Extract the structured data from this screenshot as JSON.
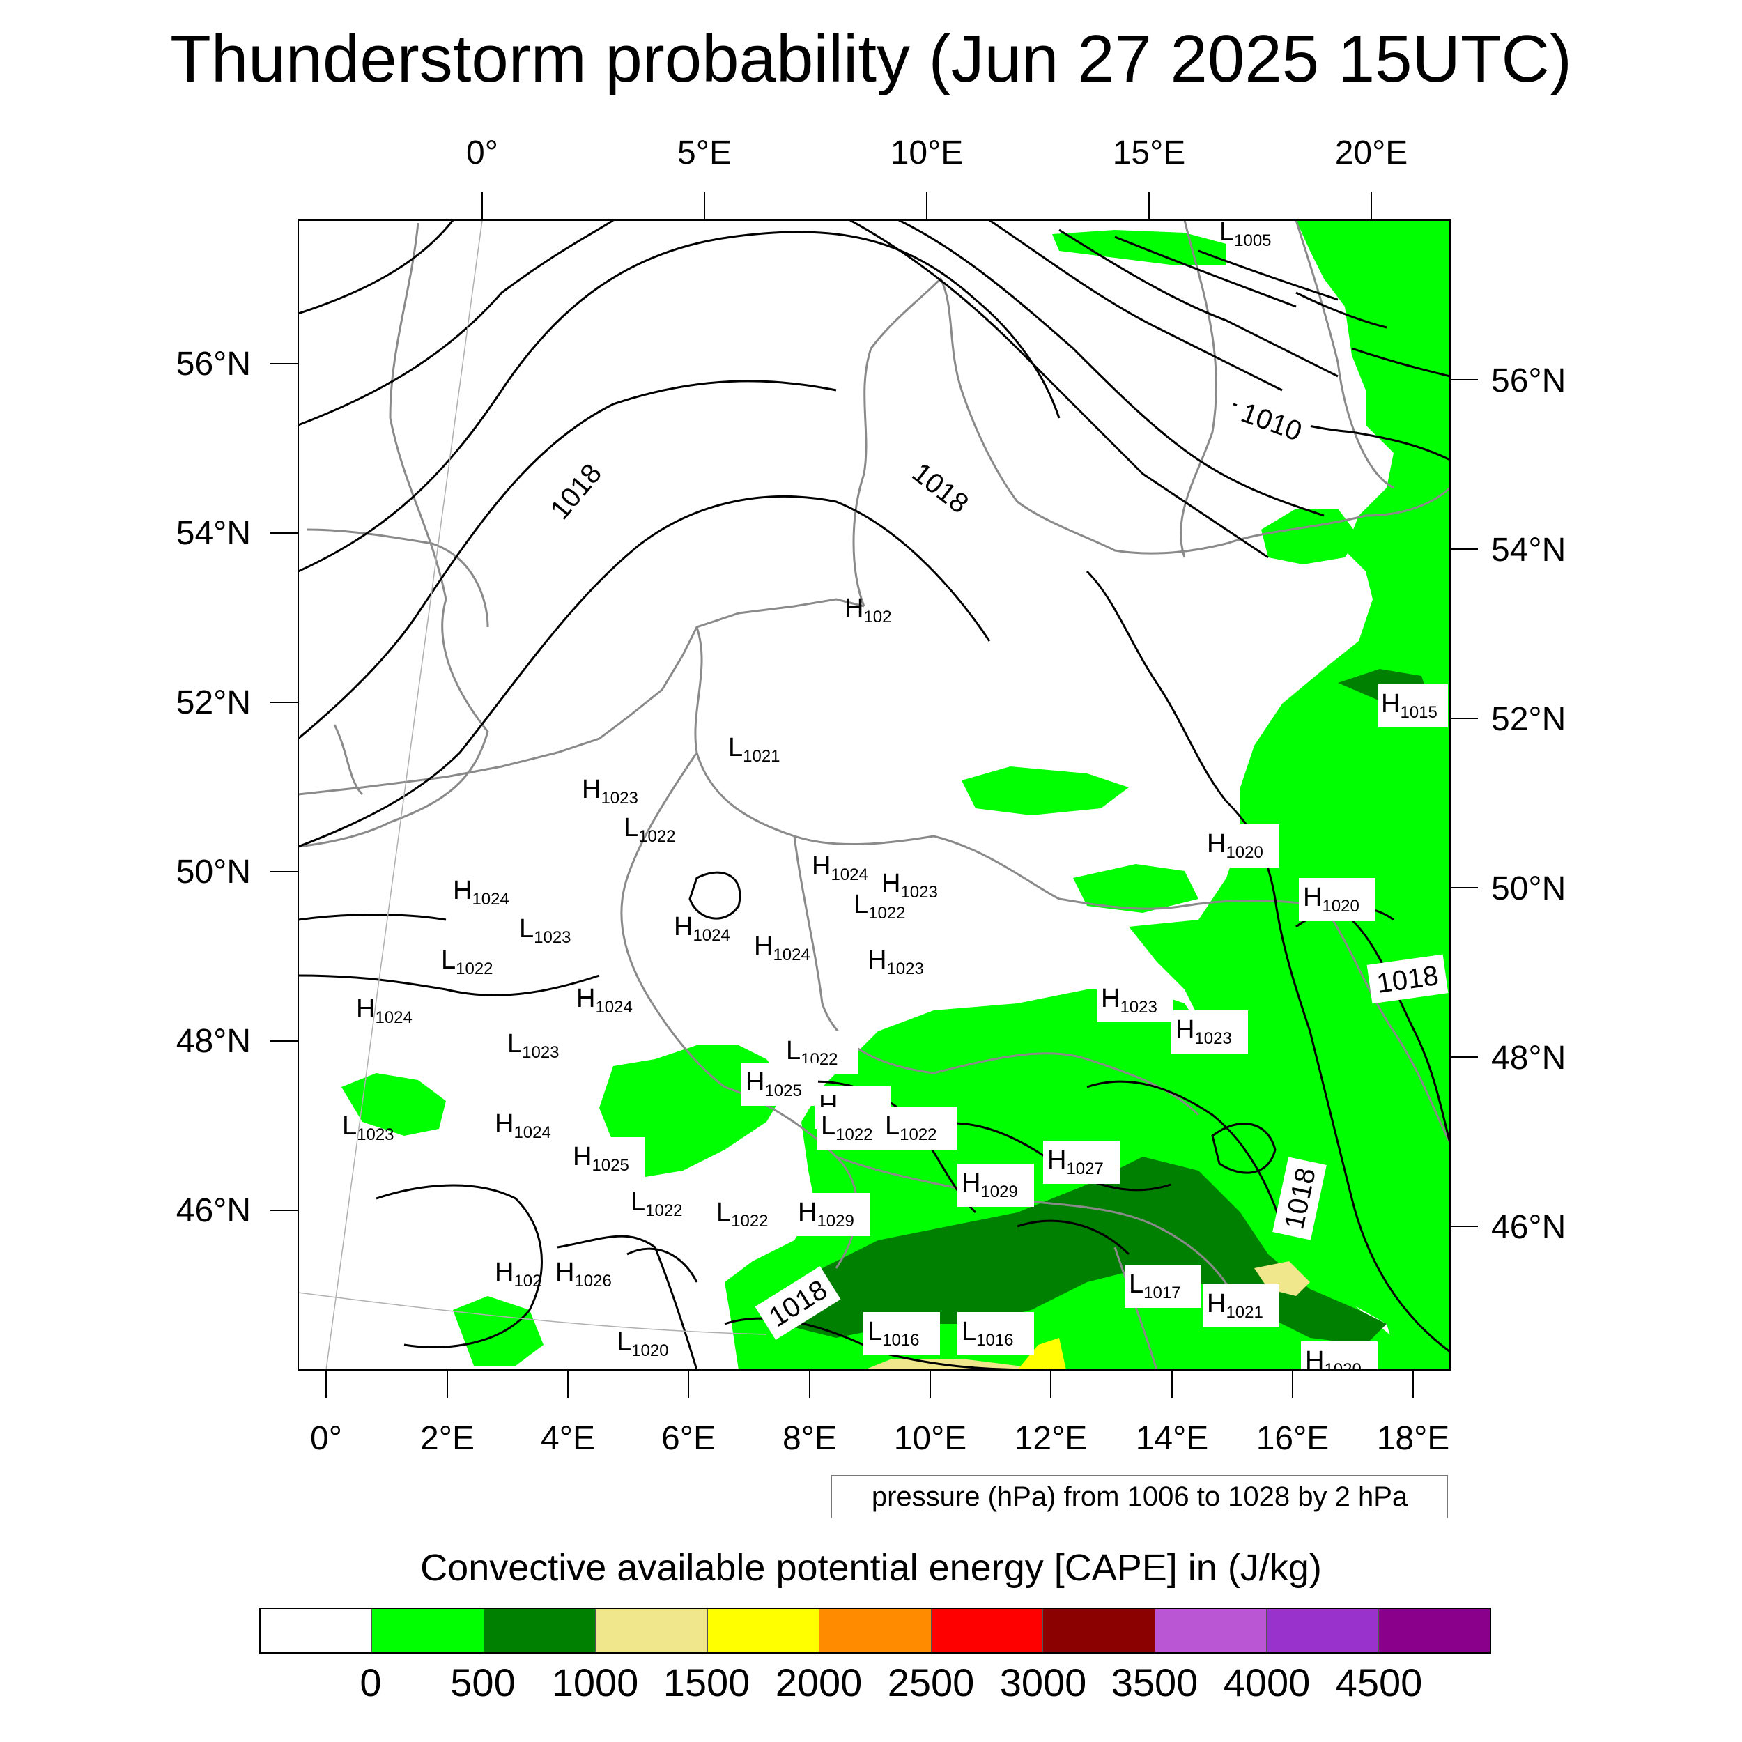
{
  "title": "Thunderstorm probability (Jun 27 2025 15UTC)",
  "map": {
    "top_lon_labels": [
      "0°",
      "5°E",
      "10°E",
      "15°E",
      "20°E"
    ],
    "bottom_lon_labels": [
      "0°",
      "2°E",
      "4°E",
      "6°E",
      "8°E",
      "10°E",
      "12°E",
      "14°E",
      "16°E",
      "18°E"
    ],
    "left_lat_labels": [
      "56°N",
      "54°N",
      "52°N",
      "50°N",
      "48°N",
      "46°N"
    ],
    "right_lat_labels": [
      "56°N",
      "54°N",
      "52°N",
      "50°N",
      "48°N",
      "46°N"
    ],
    "isobar_labels": [
      "1018",
      "1010",
      "1018",
      "1018",
      "1018",
      "1018"
    ],
    "pressure_centers": [
      {
        "type": "L",
        "value": "1005"
      },
      {
        "type": "H",
        "value": "102"
      },
      {
        "type": "H",
        "value": "1015"
      },
      {
        "type": "L",
        "value": "1021"
      },
      {
        "type": "H",
        "value": "1023"
      },
      {
        "type": "L",
        "value": "1022"
      },
      {
        "type": "H",
        "value": "1024"
      },
      {
        "type": "H",
        "value": "1023"
      },
      {
        "type": "L",
        "value": "1022"
      },
      {
        "type": "H",
        "value": "1020"
      },
      {
        "type": "H",
        "value": "1020"
      },
      {
        "type": "H",
        "value": "1024"
      },
      {
        "type": "L",
        "value": "1023"
      },
      {
        "type": "H",
        "value": "1024"
      },
      {
        "type": "H",
        "value": "1024"
      },
      {
        "type": "L",
        "value": "1022"
      },
      {
        "type": "H",
        "value": "1023"
      },
      {
        "type": "H",
        "value": "1024"
      },
      {
        "type": "H",
        "value": "1024"
      },
      {
        "type": "H",
        "value": "1023"
      },
      {
        "type": "H",
        "value": "1023"
      },
      {
        "type": "L",
        "value": "1023"
      },
      {
        "type": "L",
        "value": "1022"
      },
      {
        "type": "H",
        "value": "1025"
      },
      {
        "type": "H",
        "value": "1025"
      },
      {
        "type": "L",
        "value": "1022"
      },
      {
        "type": "L",
        "value": "1022"
      },
      {
        "type": "L",
        "value": "1023"
      },
      {
        "type": "H",
        "value": "1024"
      },
      {
        "type": "H",
        "value": "1025"
      },
      {
        "type": "H",
        "value": "1027"
      },
      {
        "type": "H",
        "value": "1029"
      },
      {
        "type": "L",
        "value": "1022"
      },
      {
        "type": "L",
        "value": "1022"
      },
      {
        "type": "H",
        "value": "1029"
      },
      {
        "type": "H",
        "value": "102"
      },
      {
        "type": "H",
        "value": "1026"
      },
      {
        "type": "L",
        "value": "1017"
      },
      {
        "type": "H",
        "value": "1021"
      },
      {
        "type": "L",
        "value": "1016"
      },
      {
        "type": "L",
        "value": "1016"
      },
      {
        "type": "L",
        "value": "1020"
      },
      {
        "type": "H",
        "value": "1020"
      }
    ],
    "colors": {
      "land_border": "#8a8a8a",
      "isobar": "#000000",
      "cape_low": "#00ff00",
      "cape_mid": "#008000",
      "cape_high": "#f0e68c",
      "cape_very_high": "#ffff00"
    }
  },
  "pressure_note": "pressure (hPa) from 1006 to 1028 by 2 hPa",
  "colorbar": {
    "label": "Convective available potential energy [CAPE] in (J/kg)",
    "colors": [
      "#ffffff",
      "#00ff00",
      "#008000",
      "#f0e68c",
      "#ffff00",
      "#ff8c00",
      "#ff0000",
      "#8b0000",
      "#ba55d3",
      "#9932cc",
      "#8b008b"
    ],
    "ticks": [
      "0",
      "500",
      "1000",
      "1500",
      "2000",
      "2500",
      "3000",
      "3500",
      "4000",
      "4500"
    ]
  }
}
